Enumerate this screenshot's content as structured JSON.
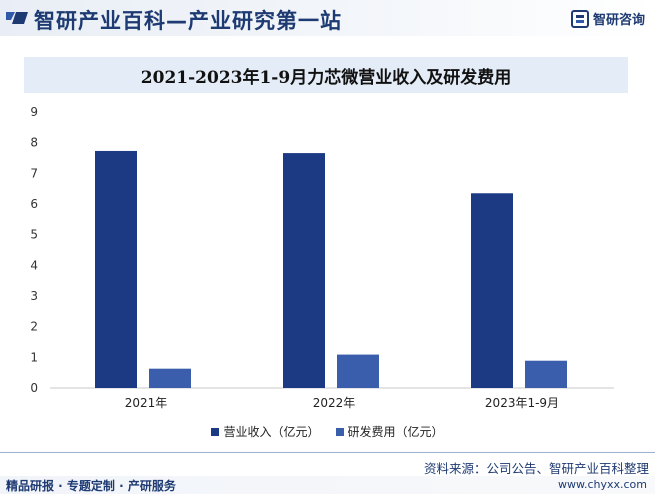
{
  "header": {
    "site_title": "智研产业百科—产业研究第一站",
    "brand_name": "智研咨询"
  },
  "colors": {
    "series_revenue": "#1b3a83",
    "series_rd": "#3a5eab",
    "header_text": "#1e3a72"
  },
  "chart_data": {
    "type": "bar",
    "title": "2021-2023年1-9月力芯微营业收入及研发费用",
    "categories": [
      "2021年",
      "2022年",
      "2023年1-9月"
    ],
    "series": [
      {
        "name": "营业收入（亿元）",
        "values": [
          7.73,
          7.66,
          6.35
        ]
      },
      {
        "name": "研发费用（亿元）",
        "values": [
          0.63,
          1.09,
          0.89
        ]
      }
    ],
    "ylim": [
      0,
      9
    ],
    "yticks": [
      0,
      1,
      2,
      3,
      4,
      5,
      6,
      7,
      8,
      9
    ],
    "xlabel": "",
    "ylabel": "",
    "grid": false,
    "legend_position": "bottom"
  },
  "footer": {
    "source": "资料来源：公司公告、智研产业百科整理",
    "tagline": "精品研报 · 专题定制 · 产研服务",
    "url": "www.chyxx.com"
  }
}
